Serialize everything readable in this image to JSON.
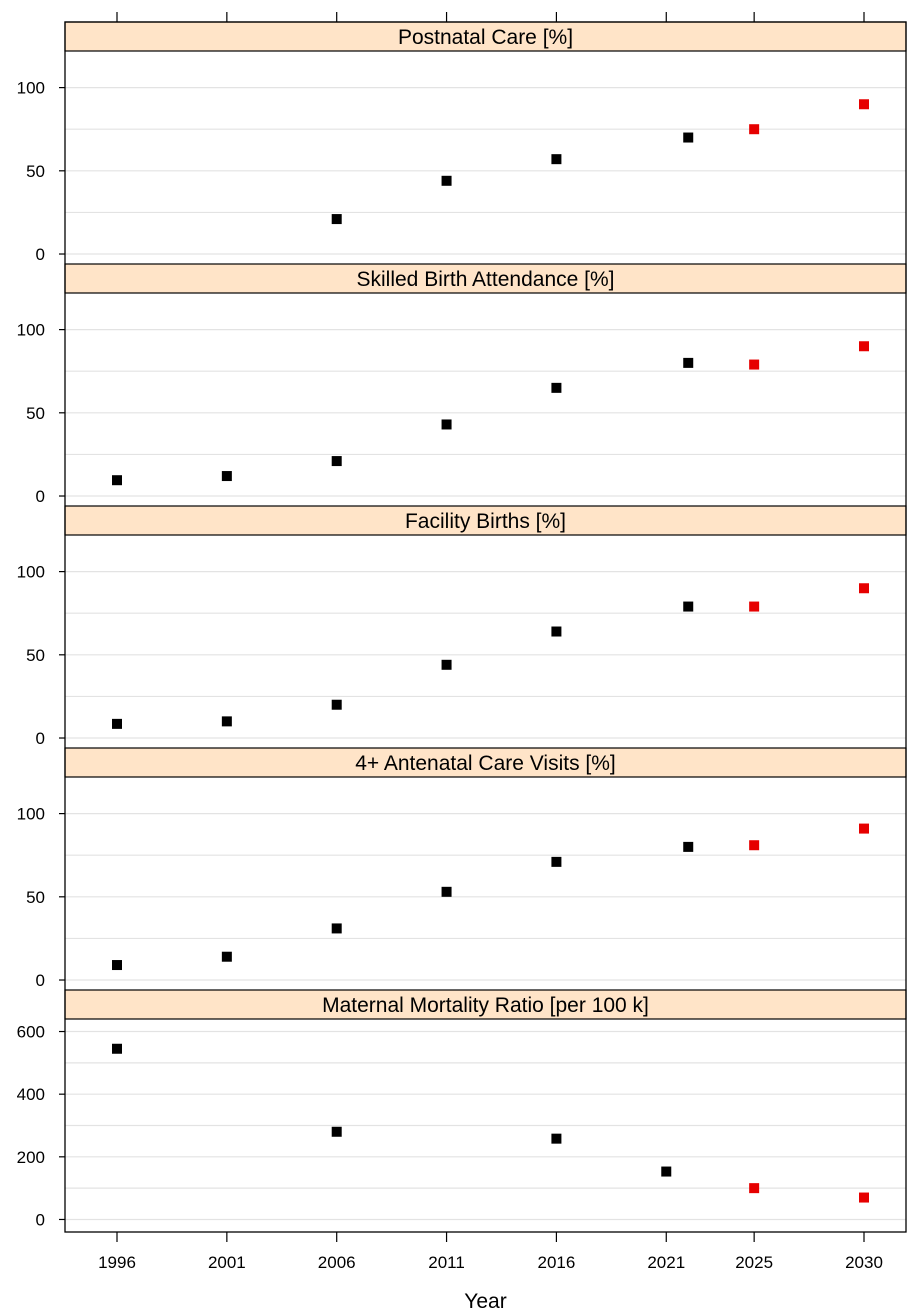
{
  "chart_data": {
    "type": "scatter",
    "layout": "lattice, 5 panels stacked vertically, shared x-axis",
    "xlabel": "Year",
    "x_ticks": [
      1996,
      2001,
      2006,
      2011,
      2016,
      2021,
      2025,
      2030
    ],
    "grid": "horizontal gridlines",
    "colors": {
      "observed": "#000000",
      "target": "#e60000",
      "strip": "#ffe4c8"
    },
    "marker": "square",
    "panels": [
      {
        "title": "Postnatal Care [%]",
        "ylim": [
          -6,
          122
        ],
        "y_ticks": [
          0,
          50,
          100
        ],
        "series": [
          {
            "role": "observed",
            "x": [
              2006,
              2011,
              2016,
              2022
            ],
            "y": [
              21,
              44,
              57,
              70
            ]
          },
          {
            "role": "target",
            "x": [
              2025,
              2030
            ],
            "y": [
              75,
              90
            ]
          }
        ]
      },
      {
        "title": "Skilled Birth Attendance [%]",
        "ylim": [
          -6,
          122
        ],
        "y_ticks": [
          0,
          50,
          100
        ],
        "series": [
          {
            "role": "observed",
            "x": [
              1996,
              2001,
              2006,
              2011,
              2016,
              2022
            ],
            "y": [
              9.5,
              12,
              21,
              43,
              65,
              80
            ]
          },
          {
            "role": "target",
            "x": [
              2025,
              2030
            ],
            "y": [
              79,
              90
            ]
          }
        ]
      },
      {
        "title": "Facility Births [%]",
        "ylim": [
          -6,
          122
        ],
        "y_ticks": [
          0,
          50,
          100
        ],
        "series": [
          {
            "role": "observed",
            "x": [
              1996,
              2001,
              2006,
              2011,
              2016,
              2022
            ],
            "y": [
              8.5,
              10,
              20,
              44,
              64,
              79
            ]
          },
          {
            "role": "target",
            "x": [
              2025,
              2030
            ],
            "y": [
              79,
              90
            ]
          }
        ]
      },
      {
        "title": "4+ Antenatal Care Visits [%]",
        "ylim": [
          -6,
          122
        ],
        "y_ticks": [
          0,
          50,
          100
        ],
        "series": [
          {
            "role": "observed",
            "x": [
              1996,
              2001,
              2006,
              2011,
              2016,
              2022
            ],
            "y": [
              9,
              14,
              31,
              53,
              71,
              80
            ]
          },
          {
            "role": "target",
            "x": [
              2025,
              2030
            ],
            "y": [
              81,
              91
            ]
          }
        ]
      },
      {
        "title": "Maternal Mortality Ratio [per 100 k]",
        "ylim": [
          -40,
          640
        ],
        "y_ticks": [
          0,
          200,
          400,
          600
        ],
        "series": [
          {
            "role": "observed",
            "x": [
              1996,
              2006,
              2016,
              2021
            ],
            "y": [
              545,
              280,
              258,
              153
            ]
          },
          {
            "role": "target",
            "x": [
              2025,
              2030
            ],
            "y": [
              100,
              70
            ]
          }
        ]
      }
    ]
  }
}
